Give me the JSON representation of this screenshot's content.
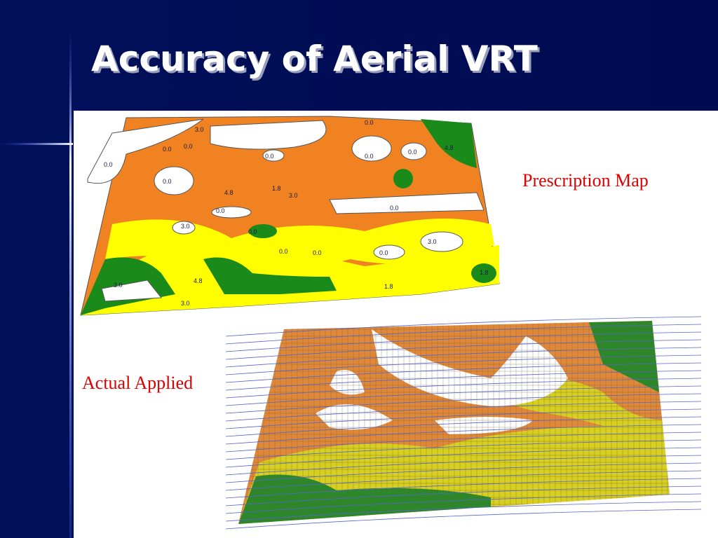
{
  "slide": {
    "title": "Accuracy of Aerial VRT",
    "prescription_label": "Prescription Map",
    "applied_label": "Actual Applied",
    "map_labels": [
      "3.0",
      "0.0",
      "0.0",
      "0.0",
      "0.0",
      "0.0",
      "4.8",
      "0.0",
      "0.0",
      "1.8",
      "4.8",
      "3.0",
      "0.0",
      "0.0",
      "0.0",
      "3.0",
      "0.0",
      "0.0",
      "3.0",
      "0.0",
      "4.8",
      "1.8",
      "3.0",
      "3.0",
      "1.8",
      "0.0"
    ]
  }
}
